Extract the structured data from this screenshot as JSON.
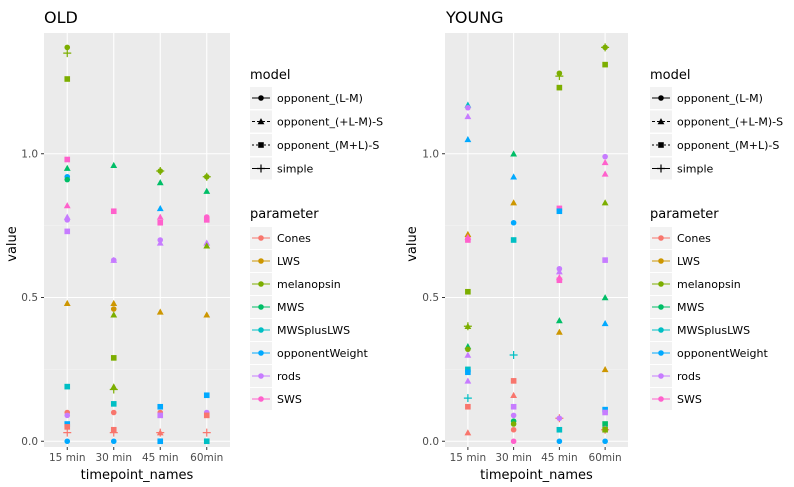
{
  "chart_data": [
    {
      "type": "scatter",
      "title": "OLD",
      "xlabel": "timepoint_names",
      "ylabel": "value",
      "categories": [
        "15 min",
        "30 min",
        "45 min",
        "60min"
      ],
      "y_ticks": [
        0.0,
        0.5,
        1.0
      ],
      "ylim": [
        -0.02,
        1.42
      ],
      "grid": true,
      "points": [
        {
          "x": "15 min",
          "y": 1.37,
          "parameter": "melanopsin",
          "model": "opponent_(L-M)"
        },
        {
          "x": "15 min",
          "y": 1.35,
          "parameter": "melanopsin",
          "model": "simple"
        },
        {
          "x": "15 min",
          "y": 1.26,
          "parameter": "melanopsin",
          "model": "opponent_(M+L)-S"
        },
        {
          "x": "15 min",
          "y": 0.98,
          "parameter": "SWS",
          "model": "opponent_(M+L)-S"
        },
        {
          "x": "15 min",
          "y": 0.95,
          "parameter": "MWS",
          "model": "opponent_(+L-M)-S"
        },
        {
          "x": "15 min",
          "y": 0.92,
          "parameter": "opponentWeight",
          "model": "opponent_(L-M)"
        },
        {
          "x": "15 min",
          "y": 0.91,
          "parameter": "MWS",
          "model": "opponent_(L-M)"
        },
        {
          "x": "15 min",
          "y": 0.82,
          "parameter": "SWS",
          "model": "opponent_(+L-M)-S"
        },
        {
          "x": "15 min",
          "y": 0.78,
          "parameter": "rods",
          "model": "opponent_(+L-M)-S"
        },
        {
          "x": "15 min",
          "y": 0.77,
          "parameter": "rods",
          "model": "opponent_(L-M)"
        },
        {
          "x": "15 min",
          "y": 0.73,
          "parameter": "rods",
          "model": "opponent_(M+L)-S"
        },
        {
          "x": "15 min",
          "y": 0.48,
          "parameter": "LWS",
          "model": "opponent_(+L-M)-S"
        },
        {
          "x": "15 min",
          "y": 0.19,
          "parameter": "MWSplusLWS",
          "model": "opponent_(M+L)-S"
        },
        {
          "x": "15 min",
          "y": 0.1,
          "parameter": "Cones",
          "model": "opponent_(L-M)"
        },
        {
          "x": "15 min",
          "y": 0.09,
          "parameter": "rods",
          "model": "opponent_(L-M)"
        },
        {
          "x": "15 min",
          "y": 0.06,
          "parameter": "opponentWeight",
          "model": "opponent_(M+L)-S"
        },
        {
          "x": "15 min",
          "y": 0.05,
          "parameter": "Cones",
          "model": "opponent_(M+L)-S"
        },
        {
          "x": "15 min",
          "y": 0.03,
          "parameter": "Cones",
          "model": "simple"
        },
        {
          "x": "15 min",
          "y": 0.0,
          "parameter": "opponentWeight",
          "model": "opponent_(L-M)"
        },
        {
          "x": "30 min",
          "y": 0.96,
          "parameter": "MWS",
          "model": "opponent_(+L-M)-S"
        },
        {
          "x": "30 min",
          "y": 0.8,
          "parameter": "SWS",
          "model": "opponent_(L-M)"
        },
        {
          "x": "30 min",
          "y": 0.8,
          "parameter": "SWS",
          "model": "opponent_(M+L)-S"
        },
        {
          "x": "30 min",
          "y": 0.63,
          "parameter": "rods",
          "model": "opponent_(L-M)"
        },
        {
          "x": "30 min",
          "y": 0.63,
          "parameter": "rods",
          "model": "opponent_(+L-M)-S"
        },
        {
          "x": "30 min",
          "y": 0.48,
          "parameter": "LWS",
          "model": "opponent_(+L-M)-S"
        },
        {
          "x": "30 min",
          "y": 0.46,
          "parameter": "LWS",
          "model": "opponent_(L-M)"
        },
        {
          "x": "30 min",
          "y": 0.44,
          "parameter": "melanopsin",
          "model": "opponent_(+L-M)-S"
        },
        {
          "x": "30 min",
          "y": 0.29,
          "parameter": "melanopsin",
          "model": "opponent_(M+L)-S"
        },
        {
          "x": "30 min",
          "y": 0.19,
          "parameter": "melanopsin",
          "model": "opponent_(+L-M)-S"
        },
        {
          "x": "30 min",
          "y": 0.18,
          "parameter": "melanopsin",
          "model": "simple"
        },
        {
          "x": "30 min",
          "y": 0.13,
          "parameter": "MWSplusLWS",
          "model": "opponent_(M+L)-S"
        },
        {
          "x": "30 min",
          "y": 0.1,
          "parameter": "Cones",
          "model": "opponent_(L-M)"
        },
        {
          "x": "30 min",
          "y": 0.04,
          "parameter": "Cones",
          "model": "opponent_(M+L)-S"
        },
        {
          "x": "30 min",
          "y": 0.03,
          "parameter": "Cones",
          "model": "simple"
        },
        {
          "x": "30 min",
          "y": 0.0,
          "parameter": "opponentWeight",
          "model": "opponent_(L-M)"
        },
        {
          "x": "45 min",
          "y": 0.94,
          "parameter": "melanopsin",
          "model": "opponent_(L-M)"
        },
        {
          "x": "45 min",
          "y": 0.94,
          "parameter": "melanopsin",
          "model": "simple"
        },
        {
          "x": "45 min",
          "y": 0.9,
          "parameter": "MWS",
          "model": "opponent_(+L-M)-S"
        },
        {
          "x": "45 min",
          "y": 0.81,
          "parameter": "opponentWeight",
          "model": "opponent_(+L-M)-S"
        },
        {
          "x": "45 min",
          "y": 0.78,
          "parameter": "SWS",
          "model": "opponent_(+L-M)-S"
        },
        {
          "x": "45 min",
          "y": 0.76,
          "parameter": "SWS",
          "model": "opponent_(M+L)-S"
        },
        {
          "x": "45 min",
          "y": 0.7,
          "parameter": "rods",
          "model": "opponent_(L-M)"
        },
        {
          "x": "45 min",
          "y": 0.69,
          "parameter": "rods",
          "model": "opponent_(+L-M)-S"
        },
        {
          "x": "45 min",
          "y": 0.45,
          "parameter": "LWS",
          "model": "opponent_(+L-M)-S"
        },
        {
          "x": "45 min",
          "y": 0.12,
          "parameter": "opponentWeight",
          "model": "opponent_(M+L)-S"
        },
        {
          "x": "45 min",
          "y": 0.1,
          "parameter": "Cones",
          "model": "opponent_(L-M)"
        },
        {
          "x": "45 min",
          "y": 0.09,
          "parameter": "rods",
          "model": "opponent_(M+L)-S"
        },
        {
          "x": "45 min",
          "y": 0.03,
          "parameter": "Cones",
          "model": "simple"
        },
        {
          "x": "45 min",
          "y": 0.03,
          "parameter": "Cones",
          "model": "opponent_(+L-M)-S"
        },
        {
          "x": "45 min",
          "y": 0.0,
          "parameter": "opponentWeight",
          "model": "opponent_(M+L)-S"
        },
        {
          "x": "60min",
          "y": 0.92,
          "parameter": "melanopsin",
          "model": "opponent_(L-M)"
        },
        {
          "x": "60min",
          "y": 0.92,
          "parameter": "melanopsin",
          "model": "simple"
        },
        {
          "x": "60min",
          "y": 0.87,
          "parameter": "MWS",
          "model": "opponent_(+L-M)-S"
        },
        {
          "x": "60min",
          "y": 0.78,
          "parameter": "SWS",
          "model": "opponent_(L-M)"
        },
        {
          "x": "60min",
          "y": 0.77,
          "parameter": "SWS",
          "model": "opponent_(M+L)-S"
        },
        {
          "x": "60min",
          "y": 0.69,
          "parameter": "rods",
          "model": "opponent_(+L-M)-S"
        },
        {
          "x": "60min",
          "y": 0.68,
          "parameter": "melanopsin",
          "model": "opponent_(+L-M)-S"
        },
        {
          "x": "60min",
          "y": 0.44,
          "parameter": "LWS",
          "model": "opponent_(+L-M)-S"
        },
        {
          "x": "60min",
          "y": 0.16,
          "parameter": "opponentWeight",
          "model": "opponent_(M+L)-S"
        },
        {
          "x": "60min",
          "y": 0.1,
          "parameter": "rods",
          "model": "opponent_(L-M)"
        },
        {
          "x": "60min",
          "y": 0.09,
          "parameter": "Cones",
          "model": "opponent_(M+L)-S"
        },
        {
          "x": "60min",
          "y": 0.03,
          "parameter": "Cones",
          "model": "simple"
        },
        {
          "x": "60min",
          "y": 0.0,
          "parameter": "MWSplusLWS",
          "model": "opponent_(M+L)-S"
        }
      ]
    },
    {
      "type": "scatter",
      "title": "YOUNG",
      "xlabel": "timepoint_names",
      "ylabel": "value",
      "categories": [
        "15 min",
        "30 min",
        "45 min",
        "60min"
      ],
      "y_ticks": [
        0.0,
        0.5,
        1.0
      ],
      "ylim": [
        -0.02,
        1.42
      ],
      "grid": true,
      "points": [
        {
          "x": "15 min",
          "y": 1.17,
          "parameter": "MWSplusLWS",
          "model": "opponent_(+L-M)-S"
        },
        {
          "x": "15 min",
          "y": 1.16,
          "parameter": "rods",
          "model": "opponent_(L-M)"
        },
        {
          "x": "15 min",
          "y": 1.13,
          "parameter": "rods",
          "model": "opponent_(+L-M)-S"
        },
        {
          "x": "15 min",
          "y": 1.05,
          "parameter": "opponentWeight",
          "model": "opponent_(+L-M)-S"
        },
        {
          "x": "15 min",
          "y": 0.72,
          "parameter": "LWS",
          "model": "opponent_(+L-M)-S"
        },
        {
          "x": "15 min",
          "y": 0.71,
          "parameter": "SWS",
          "model": "opponent_(+L-M)-S"
        },
        {
          "x": "15 min",
          "y": 0.7,
          "parameter": "SWS",
          "model": "opponent_(M+L)-S"
        },
        {
          "x": "15 min",
          "y": 0.52,
          "parameter": "melanopsin",
          "model": "opponent_(M+L)-S"
        },
        {
          "x": "15 min",
          "y": 0.4,
          "parameter": "melanopsin",
          "model": "opponent_(+L-M)-S"
        },
        {
          "x": "15 min",
          "y": 0.4,
          "parameter": "melanopsin",
          "model": "simple"
        },
        {
          "x": "15 min",
          "y": 0.33,
          "parameter": "MWS",
          "model": "opponent_(+L-M)-S"
        },
        {
          "x": "15 min",
          "y": 0.32,
          "parameter": "melanopsin",
          "model": "opponent_(L-M)"
        },
        {
          "x": "15 min",
          "y": 0.3,
          "parameter": "rods",
          "model": "opponent_(+L-M)-S"
        },
        {
          "x": "15 min",
          "y": 0.25,
          "parameter": "MWSplusLWS",
          "model": "opponent_(M+L)-S"
        },
        {
          "x": "15 min",
          "y": 0.24,
          "parameter": "opponentWeight",
          "model": "opponent_(M+L)-S"
        },
        {
          "x": "15 min",
          "y": 0.21,
          "parameter": "rods",
          "model": "opponent_(+L-M)-S"
        },
        {
          "x": "15 min",
          "y": 0.15,
          "parameter": "MWSplusLWS",
          "model": "simple"
        },
        {
          "x": "15 min",
          "y": 0.12,
          "parameter": "Cones",
          "model": "opponent_(M+L)-S"
        },
        {
          "x": "15 min",
          "y": 0.03,
          "parameter": "Cones",
          "model": "opponent_(+L-M)-S"
        },
        {
          "x": "30 min",
          "y": 1.0,
          "parameter": "MWS",
          "model": "opponent_(+L-M)-S"
        },
        {
          "x": "30 min",
          "y": 0.92,
          "parameter": "opponentWeight",
          "model": "opponent_(+L-M)-S"
        },
        {
          "x": "30 min",
          "y": 0.83,
          "parameter": "LWS",
          "model": "opponent_(+L-M)-S"
        },
        {
          "x": "30 min",
          "y": 0.76,
          "parameter": "opponentWeight",
          "model": "opponent_(L-M)"
        },
        {
          "x": "30 min",
          "y": 0.7,
          "parameter": "MWSplusLWS",
          "model": "opponent_(M+L)-S"
        },
        {
          "x": "30 min",
          "y": 0.3,
          "parameter": "MWSplusLWS",
          "model": "simple"
        },
        {
          "x": "30 min",
          "y": 0.21,
          "parameter": "Cones",
          "model": "opponent_(M+L)-S"
        },
        {
          "x": "30 min",
          "y": 0.16,
          "parameter": "Cones",
          "model": "opponent_(+L-M)-S"
        },
        {
          "x": "30 min",
          "y": 0.12,
          "parameter": "rods",
          "model": "opponent_(M+L)-S"
        },
        {
          "x": "30 min",
          "y": 0.09,
          "parameter": "rods",
          "model": "opponent_(L-M)"
        },
        {
          "x": "30 min",
          "y": 0.07,
          "parameter": "MWS",
          "model": "opponent_(L-M)"
        },
        {
          "x": "30 min",
          "y": 0.06,
          "parameter": "melanopsin",
          "model": "opponent_(L-M)"
        },
        {
          "x": "30 min",
          "y": 0.04,
          "parameter": "Cones",
          "model": "opponent_(L-M)"
        },
        {
          "x": "30 min",
          "y": 0.0,
          "parameter": "SWS",
          "model": "opponent_(L-M)"
        },
        {
          "x": "45 min",
          "y": 1.28,
          "parameter": "melanopsin",
          "model": "opponent_(L-M)"
        },
        {
          "x": "45 min",
          "y": 1.27,
          "parameter": "melanopsin",
          "model": "simple"
        },
        {
          "x": "45 min",
          "y": 1.23,
          "parameter": "melanopsin",
          "model": "opponent_(M+L)-S"
        },
        {
          "x": "45 min",
          "y": 0.81,
          "parameter": "SWS",
          "model": "opponent_(M+L)-S"
        },
        {
          "x": "45 min",
          "y": 0.8,
          "parameter": "opponentWeight",
          "model": "opponent_(M+L)-S"
        },
        {
          "x": "45 min",
          "y": 0.6,
          "parameter": "rods",
          "model": "opponent_(L-M)"
        },
        {
          "x": "45 min",
          "y": 0.59,
          "parameter": "rods",
          "model": "opponent_(+L-M)-S"
        },
        {
          "x": "45 min",
          "y": 0.57,
          "parameter": "SWS",
          "model": "opponent_(+L-M)-S"
        },
        {
          "x": "45 min",
          "y": 0.56,
          "parameter": "SWS",
          "model": "opponent_(M+L)-S"
        },
        {
          "x": "45 min",
          "y": 0.42,
          "parameter": "MWS",
          "model": "opponent_(+L-M)-S"
        },
        {
          "x": "45 min",
          "y": 0.38,
          "parameter": "LWS",
          "model": "opponent_(+L-M)-S"
        },
        {
          "x": "45 min",
          "y": 0.08,
          "parameter": "Cones",
          "model": "simple"
        },
        {
          "x": "45 min",
          "y": 0.08,
          "parameter": "rods",
          "model": "opponent_(L-M)"
        },
        {
          "x": "45 min",
          "y": 0.04,
          "parameter": "MWSplusLWS",
          "model": "opponent_(M+L)-S"
        },
        {
          "x": "45 min",
          "y": 0.0,
          "parameter": "opponentWeight",
          "model": "opponent_(L-M)"
        },
        {
          "x": "60min",
          "y": 1.37,
          "parameter": "melanopsin",
          "model": "opponent_(L-M)"
        },
        {
          "x": "60min",
          "y": 1.37,
          "parameter": "melanopsin",
          "model": "simple"
        },
        {
          "x": "60min",
          "y": 1.31,
          "parameter": "melanopsin",
          "model": "opponent_(M+L)-S"
        },
        {
          "x": "60min",
          "y": 0.99,
          "parameter": "rods",
          "model": "opponent_(L-M)"
        },
        {
          "x": "60min",
          "y": 0.97,
          "parameter": "SWS",
          "model": "opponent_(+L-M)-S"
        },
        {
          "x": "60min",
          "y": 0.93,
          "parameter": "SWS",
          "model": "opponent_(+L-M)-S"
        },
        {
          "x": "60min",
          "y": 0.83,
          "parameter": "melanopsin",
          "model": "opponent_(+L-M)-S"
        },
        {
          "x": "60min",
          "y": 0.63,
          "parameter": "rods",
          "model": "opponent_(M+L)-S"
        },
        {
          "x": "60min",
          "y": 0.5,
          "parameter": "MWS",
          "model": "opponent_(+L-M)-S"
        },
        {
          "x": "60min",
          "y": 0.41,
          "parameter": "opponentWeight",
          "model": "opponent_(+L-M)-S"
        },
        {
          "x": "60min",
          "y": 0.25,
          "parameter": "LWS",
          "model": "opponent_(+L-M)-S"
        },
        {
          "x": "60min",
          "y": 0.11,
          "parameter": "opponentWeight",
          "model": "opponent_(M+L)-S"
        },
        {
          "x": "60min",
          "y": 0.1,
          "parameter": "rods",
          "model": "opponent_(M+L)-S"
        },
        {
          "x": "60min",
          "y": 0.06,
          "parameter": "MWS",
          "model": "opponent_(M+L)-S"
        },
        {
          "x": "60min",
          "y": 0.04,
          "parameter": "Cones",
          "model": "simple"
        },
        {
          "x": "60min",
          "y": 0.04,
          "parameter": "melanopsin",
          "model": "opponent_(M+L)-S"
        },
        {
          "x": "60min",
          "y": 0.0,
          "parameter": "opponentWeight",
          "model": "opponent_(L-M)"
        }
      ]
    }
  ],
  "legend": {
    "model_title": "model",
    "models": [
      {
        "label": "opponent_(L-M)",
        "shape": "circle"
      },
      {
        "label": "opponent_(+L-M)-S",
        "shape": "triangle"
      },
      {
        "label": "opponent_(M+L)-S",
        "shape": "square"
      },
      {
        "label": "simple",
        "shape": "plus"
      }
    ],
    "parameter_title": "parameter",
    "parameters": [
      {
        "label": "Cones",
        "color": "#F8766D"
      },
      {
        "label": "LWS",
        "color": "#CD9600"
      },
      {
        "label": "melanopsin",
        "color": "#7CAE00"
      },
      {
        "label": "MWS",
        "color": "#00BE67"
      },
      {
        "label": "MWSplusLWS",
        "color": "#00BFC4"
      },
      {
        "label": "opponentWeight",
        "color": "#00A9FF"
      },
      {
        "label": "rods",
        "color": "#C77CFF"
      },
      {
        "label": "SWS",
        "color": "#FF61CC"
      }
    ]
  },
  "colors": {
    "panel_background": "#EBEBEB",
    "grid_major": "#FFFFFF",
    "text": "#000000",
    "tick_text": "#4D4D4D"
  }
}
